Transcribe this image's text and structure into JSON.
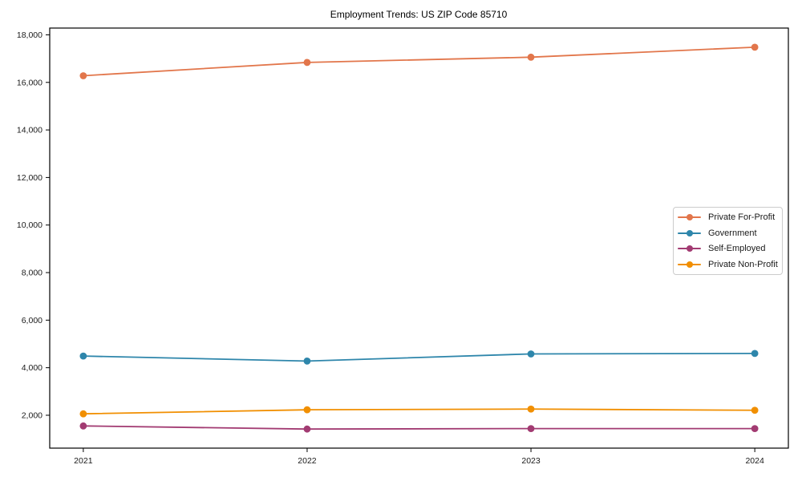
{
  "chart_data": {
    "type": "line",
    "title": "Employment Trends: US ZIP Code 85710",
    "x": [
      2021,
      2022,
      2023,
      2024
    ],
    "x_tick_labels": [
      "2021",
      "2022",
      "2023",
      "2024"
    ],
    "y_ticks": [
      2000,
      4000,
      6000,
      8000,
      10000,
      12000,
      14000,
      16000,
      18000
    ],
    "y_tick_labels": [
      "2,000",
      "4,000",
      "6,000",
      "8,000",
      "10,000",
      "12,000",
      "14,000",
      "16,000",
      "18,000"
    ],
    "series": [
      {
        "name": "Private For-Profit",
        "color": "#E2764B",
        "values": [
          16280,
          16840,
          17060,
          17480
        ]
      },
      {
        "name": "Government",
        "color": "#2E86AB",
        "values": [
          4490,
          4280,
          4580,
          4600
        ]
      },
      {
        "name": "Self-Employed",
        "color": "#A23B72",
        "values": [
          1550,
          1420,
          1440,
          1440
        ]
      },
      {
        "name": "Private Non-Profit",
        "color": "#F18F01",
        "values": [
          2060,
          2230,
          2260,
          2210
        ]
      }
    ],
    "xlim": [
      2020.85,
      2024.15
    ],
    "ylim": [
      617,
      18285
    ],
    "grid": false,
    "marker": "circle",
    "legend_position": "center right",
    "axis_color": "#000000"
  }
}
